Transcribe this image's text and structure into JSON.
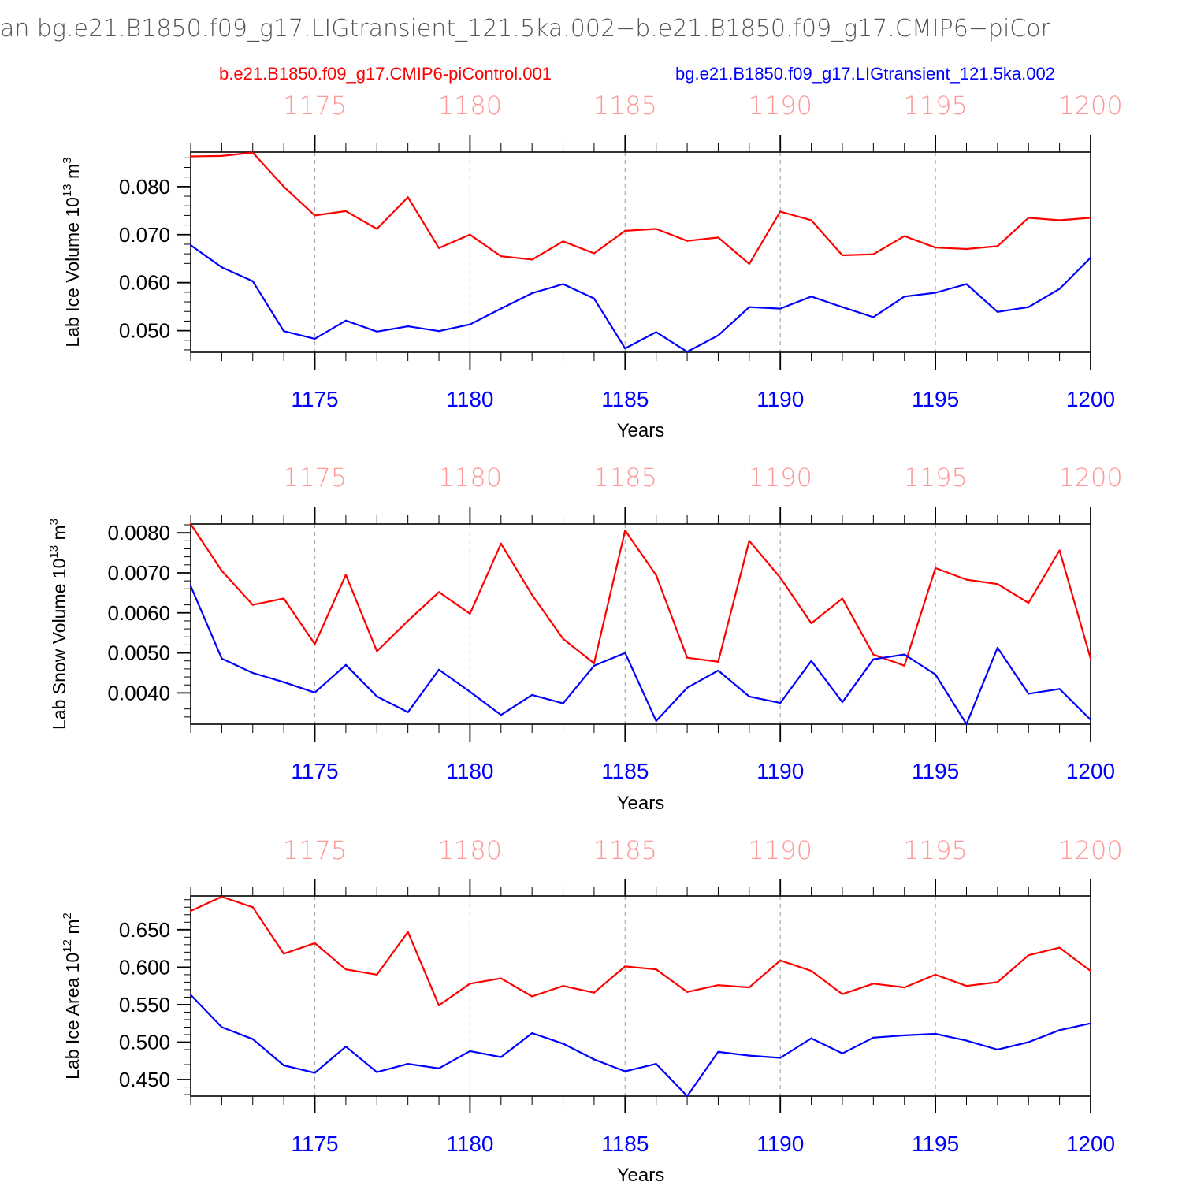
{
  "header": {
    "title": "an bg.e21.B1850.f09_g17.LIGtransient_121.5ka.002−b.e21.B1850.f09_g17.CMIP6−piCor",
    "legend_left": "b.e21.B1850.f09_g17.CMIP6-piControl.001",
    "legend_right": "bg.e21.B1850.f09_g17.LIGtransient_121.5ka.002"
  },
  "colors": {
    "control": "#ff0000",
    "transient": "#0000ff",
    "top_axis_labels": "#ff9999",
    "bottom_axis_labels": "#0000ff",
    "gridline": "#aaaaaa"
  },
  "chart_data": [
    {
      "type": "line",
      "ylabel": "Lab Ice Volume 10",
      "ylabel_exp": "13",
      "ylabel_unit": " m",
      "ylabel_unit_exp": "3",
      "xlabel": "Years",
      "xlim": [
        1171,
        1200
      ],
      "ylim": [
        0.0455,
        0.0872
      ],
      "yticks": [
        0.05,
        0.06,
        0.07,
        0.08
      ],
      "ytick_labels": [
        "0.050",
        "0.060",
        "0.070",
        "0.080"
      ],
      "ytick_minor_step": 0.002,
      "xticks": [
        1175,
        1180,
        1185,
        1190,
        1195,
        1200
      ],
      "xtick_labels": [
        "1175",
        "1180",
        "1185",
        "1190",
        "1195",
        "1200"
      ],
      "grid": "vertical dashed at major x ticks",
      "x": [
        1171,
        1172,
        1173,
        1174,
        1175,
        1176,
        1177,
        1178,
        1179,
        1180,
        1181,
        1182,
        1183,
        1184,
        1185,
        1186,
        1187,
        1188,
        1189,
        1190,
        1191,
        1192,
        1193,
        1194,
        1195,
        1196,
        1197,
        1198,
        1199,
        1200
      ],
      "series": [
        {
          "name": "b.e21.B1850.f09_g17.CMIP6-piControl.001",
          "color_key": "control",
          "values": [
            0.0863,
            0.0864,
            0.0871,
            0.08,
            0.074,
            0.0749,
            0.0712,
            0.0778,
            0.0672,
            0.07,
            0.0655,
            0.0648,
            0.0686,
            0.0661,
            0.0708,
            0.0712,
            0.0687,
            0.0694,
            0.0639,
            0.0748,
            0.073,
            0.0657,
            0.0659,
            0.0697,
            0.0673,
            0.067,
            0.0676,
            0.0735,
            0.073,
            0.0735
          ]
        },
        {
          "name": "bg.e21.B1850.f09_g17.LIGtransient_121.5ka.002",
          "color_key": "transient",
          "values": [
            0.0678,
            0.0632,
            0.0603,
            0.0499,
            0.0483,
            0.0521,
            0.0498,
            0.0509,
            0.0499,
            0.0513,
            0.0546,
            0.0578,
            0.0597,
            0.0567,
            0.0463,
            0.0497,
            0.0456,
            0.049,
            0.0549,
            0.0546,
            0.0571,
            0.0549,
            0.0528,
            0.0571,
            0.0579,
            0.0597,
            0.0539,
            0.0549,
            0.0587,
            0.0652
          ]
        }
      ]
    },
    {
      "type": "line",
      "ylabel": "Lab Snow Volume 10",
      "ylabel_exp": "13",
      "ylabel_unit": " m",
      "ylabel_unit_exp": "3",
      "xlabel": "Years",
      "xlim": [
        1171,
        1200
      ],
      "ylim": [
        0.00322,
        0.00822
      ],
      "yticks": [
        0.004,
        0.005,
        0.006,
        0.007,
        0.008
      ],
      "ytick_labels": [
        "0.0040",
        "0.0050",
        "0.0060",
        "0.0070",
        "0.0080"
      ],
      "ytick_minor_step": 0.0002,
      "xticks": [
        1175,
        1180,
        1185,
        1190,
        1195,
        1200
      ],
      "xtick_labels": [
        "1175",
        "1180",
        "1185",
        "1190",
        "1195",
        "1200"
      ],
      "grid": "vertical dashed at major x ticks",
      "x": [
        1171,
        1172,
        1173,
        1174,
        1175,
        1176,
        1177,
        1178,
        1179,
        1180,
        1181,
        1182,
        1183,
        1184,
        1185,
        1186,
        1187,
        1188,
        1189,
        1190,
        1191,
        1192,
        1193,
        1194,
        1195,
        1196,
        1197,
        1198,
        1199,
        1200
      ],
      "series": [
        {
          "name": "b.e21.B1850.f09_g17.CMIP6-piControl.001",
          "color_key": "control",
          "values": [
            0.00822,
            0.00705,
            0.0062,
            0.00636,
            0.00522,
            0.00695,
            0.00504,
            0.0058,
            0.00652,
            0.00598,
            0.00773,
            0.00645,
            0.00535,
            0.00474,
            0.00806,
            0.00694,
            0.00488,
            0.00478,
            0.0078,
            0.00688,
            0.00574,
            0.00636,
            0.00496,
            0.00468,
            0.00712,
            0.00683,
            0.00672,
            0.00625,
            0.00756,
            0.00486
          ]
        },
        {
          "name": "bg.e21.B1850.f09_g17.LIGtransient_121.5ka.002",
          "color_key": "transient",
          "values": [
            0.00667,
            0.00486,
            0.0045,
            0.00427,
            0.00401,
            0.0047,
            0.00391,
            0.00352,
            0.00458,
            0.00403,
            0.00345,
            0.00395,
            0.00374,
            0.00468,
            0.005,
            0.0033,
            0.00413,
            0.00456,
            0.00391,
            0.00375,
            0.0048,
            0.00377,
            0.00484,
            0.00496,
            0.00446,
            0.00322,
            0.00513,
            0.00398,
            0.0041,
            0.00333
          ]
        }
      ]
    },
    {
      "type": "line",
      "ylabel": "Lab Ice Area 10",
      "ylabel_exp": "12",
      "ylabel_unit": " m",
      "ylabel_unit_exp": "2",
      "xlabel": "Years",
      "xlim": [
        1171,
        1200
      ],
      "ylim": [
        0.428,
        0.695
      ],
      "yticks": [
        0.45,
        0.5,
        0.55,
        0.6,
        0.65
      ],
      "ytick_labels": [
        "0.450",
        "0.500",
        "0.550",
        "0.600",
        "0.650"
      ],
      "ytick_minor_step": 0.01,
      "xticks": [
        1175,
        1180,
        1185,
        1190,
        1195,
        1200
      ],
      "xtick_labels": [
        "1175",
        "1180",
        "1185",
        "1190",
        "1195",
        "1200"
      ],
      "grid": "vertical dashed at major x ticks",
      "x": [
        1171,
        1172,
        1173,
        1174,
        1175,
        1176,
        1177,
        1178,
        1179,
        1180,
        1181,
        1182,
        1183,
        1184,
        1185,
        1186,
        1187,
        1188,
        1189,
        1190,
        1191,
        1192,
        1193,
        1194,
        1195,
        1196,
        1197,
        1198,
        1199,
        1200
      ],
      "series": [
        {
          "name": "b.e21.B1850.f09_g17.CMIP6-piControl.001",
          "color_key": "control",
          "values": [
            0.675,
            0.694,
            0.68,
            0.618,
            0.632,
            0.597,
            0.59,
            0.647,
            0.549,
            0.578,
            0.585,
            0.561,
            0.575,
            0.566,
            0.601,
            0.597,
            0.567,
            0.576,
            0.573,
            0.609,
            0.595,
            0.564,
            0.578,
            0.573,
            0.59,
            0.575,
            0.58,
            0.616,
            0.626,
            0.595
          ]
        },
        {
          "name": "bg.e21.B1850.f09_g17.LIGtransient_121.5ka.002",
          "color_key": "transient",
          "values": [
            0.563,
            0.52,
            0.504,
            0.469,
            0.459,
            0.494,
            0.46,
            0.471,
            0.465,
            0.488,
            0.48,
            0.512,
            0.498,
            0.477,
            0.461,
            0.471,
            0.428,
            0.487,
            0.482,
            0.479,
            0.505,
            0.485,
            0.506,
            0.509,
            0.511,
            0.502,
            0.49,
            0.5,
            0.516,
            0.525
          ]
        }
      ]
    }
  ]
}
